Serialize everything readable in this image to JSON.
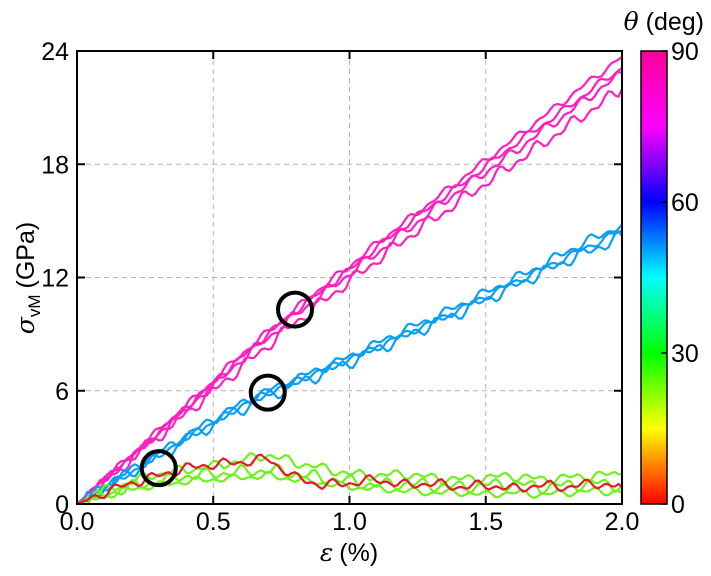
{
  "chart_data": {
    "type": "line",
    "xlabel": {
      "symbol": "ε",
      "unit": "(%)"
    },
    "ylabel": {
      "symbol": "σ",
      "subscript": "vM",
      "unit": "(GPa)"
    },
    "xlim": [
      0,
      2
    ],
    "ylim": [
      0,
      24
    ],
    "x_ticks": [
      "0.0",
      "0.5",
      "1.0",
      "1.5",
      "2.0"
    ],
    "y_ticks": [
      "0",
      "6",
      "12",
      "18",
      "24"
    ],
    "grid": true,
    "colorbar": {
      "title_symbol": "θ",
      "title_unit": "(deg)",
      "range": [
        0,
        90
      ],
      "ticks": [
        "0",
        "30",
        "60",
        "90"
      ],
      "colormap": "hsv"
    },
    "series": [
      {
        "theta": 90,
        "color": "#ff1fc0",
        "x": [
          0,
          0.1,
          0.2,
          0.3,
          0.4,
          0.5,
          0.6,
          0.7,
          0.8,
          0.9,
          1.0,
          1.1,
          1.2,
          1.3,
          1.4,
          1.5,
          1.6,
          1.7,
          1.8,
          1.9,
          2.0
        ],
        "y": [
          0,
          1.3,
          2.6,
          3.9,
          5.2,
          6.5,
          7.9,
          9.1,
          10.3,
          11.5,
          12.6,
          13.8,
          14.9,
          16.0,
          17.1,
          18.2,
          19.3,
          20.4,
          21.5,
          22.6,
          23.7
        ]
      },
      {
        "theta": 90,
        "color": "#ff1fc0",
        "x": [
          0,
          0.1,
          0.2,
          0.3,
          0.4,
          0.5,
          0.6,
          0.7,
          0.8,
          0.9,
          1.0,
          1.1,
          1.2,
          1.3,
          1.4,
          1.5,
          1.6,
          1.7,
          1.8,
          1.9,
          2.0
        ],
        "y": [
          0,
          1.2,
          2.5,
          3.7,
          5.0,
          6.3,
          7.6,
          8.8,
          10.0,
          11.1,
          12.2,
          13.3,
          14.4,
          15.5,
          16.6,
          17.6,
          18.6,
          19.7,
          20.7,
          21.8,
          22.8
        ]
      },
      {
        "theta": 90,
        "color": "#ff1fc0",
        "x": [
          0,
          0.1,
          0.2,
          0.3,
          0.4,
          0.5,
          0.6,
          0.7,
          0.8,
          0.9,
          1.0,
          1.1,
          1.2,
          1.3,
          1.4,
          1.5,
          1.6,
          1.7,
          1.8,
          1.9,
          2.0
        ],
        "y": [
          0,
          1.2,
          2.4,
          3.6,
          4.8,
          6.0,
          7.2,
          8.4,
          9.6,
          10.7,
          11.8,
          12.9,
          14.0,
          15.0,
          16.0,
          17.0,
          18.0,
          19.0,
          20.0,
          21.0,
          22.0
        ]
      },
      {
        "theta": 90,
        "color": "#ff1fc0",
        "x": [
          0,
          0.1,
          0.2,
          0.3,
          0.4,
          0.5,
          0.6,
          0.7,
          0.8,
          0.9,
          1.0,
          1.1,
          1.2,
          1.3,
          1.4,
          1.5,
          1.6,
          1.7,
          1.8,
          1.9,
          2.0
        ],
        "y": [
          0,
          1.3,
          2.5,
          3.8,
          5.1,
          6.4,
          7.7,
          9.0,
          10.2,
          11.3,
          12.4,
          13.6,
          14.7,
          15.8,
          16.8,
          17.9,
          19.0,
          20.0,
          21.0,
          22.1,
          23.1
        ]
      },
      {
        "theta": 60,
        "color": "#0a9ef5",
        "x": [
          0,
          0.1,
          0.2,
          0.3,
          0.4,
          0.5,
          0.6,
          0.7,
          0.8,
          0.9,
          1.0,
          1.1,
          1.2,
          1.3,
          1.4,
          1.5,
          1.6,
          1.7,
          1.8,
          1.9,
          2.0
        ],
        "y": [
          0,
          0.9,
          1.8,
          2.7,
          3.6,
          4.5,
          5.3,
          6.0,
          6.6,
          7.2,
          7.8,
          8.5,
          9.2,
          9.8,
          10.5,
          11.2,
          11.9,
          12.6,
          13.4,
          14.1,
          14.8
        ]
      },
      {
        "theta": 60,
        "color": "#0a9ef5",
        "x": [
          0,
          0.1,
          0.2,
          0.3,
          0.4,
          0.5,
          0.6,
          0.7,
          0.8,
          0.9,
          1.0,
          1.1,
          1.2,
          1.3,
          1.4,
          1.5,
          1.6,
          1.7,
          1.8,
          1.9,
          2.0
        ],
        "y": [
          0,
          0.8,
          1.7,
          2.5,
          3.4,
          4.2,
          5.0,
          5.7,
          6.3,
          6.9,
          7.5,
          8.2,
          8.8,
          9.5,
          10.1,
          10.8,
          11.5,
          12.2,
          12.9,
          13.5,
          14.2
        ]
      },
      {
        "theta": 60,
        "color": "#0a9ef5",
        "x": [
          0,
          0.1,
          0.2,
          0.3,
          0.4,
          0.5,
          0.6,
          0.7,
          0.8,
          0.9,
          1.0,
          1.1,
          1.2,
          1.3,
          1.4,
          1.5,
          1.6,
          1.7,
          1.8,
          1.9,
          2.0
        ],
        "y": [
          0,
          0.9,
          1.7,
          2.6,
          3.5,
          4.3,
          5.2,
          5.9,
          6.5,
          7.1,
          7.7,
          8.3,
          9.0,
          9.6,
          10.3,
          11.0,
          11.7,
          12.4,
          13.1,
          13.8,
          14.5
        ]
      },
      {
        "theta": 30,
        "color": "#6ef21a",
        "x": [
          0,
          0.1,
          0.2,
          0.3,
          0.4,
          0.5,
          0.6,
          0.7,
          0.8,
          0.9,
          1.0,
          1.1,
          1.2,
          1.3,
          1.4,
          1.5,
          1.6,
          1.7,
          1.8,
          1.9,
          2.0
        ],
        "y": [
          0,
          0.7,
          1.2,
          1.6,
          1.8,
          2.0,
          2.3,
          2.6,
          2.2,
          1.9,
          1.6,
          1.5,
          1.6,
          1.4,
          1.3,
          1.4,
          1.5,
          1.3,
          1.4,
          1.5,
          1.6
        ]
      },
      {
        "theta": 30,
        "color": "#6ef21a",
        "x": [
          0,
          0.1,
          0.2,
          0.3,
          0.4,
          0.5,
          0.6,
          0.7,
          0.8,
          0.9,
          1.0,
          1.1,
          1.2,
          1.3,
          1.4,
          1.5,
          1.6,
          1.7,
          1.8,
          1.9,
          2.0
        ],
        "y": [
          0,
          0.5,
          0.9,
          1.2,
          1.5,
          1.6,
          1.7,
          1.8,
          1.6,
          1.4,
          1.2,
          1.0,
          1.1,
          1.0,
          0.9,
          1.0,
          1.1,
          0.9,
          1.0,
          1.1,
          1.0
        ]
      },
      {
        "theta": 30,
        "color": "#6ef21a",
        "x": [
          0,
          0.1,
          0.2,
          0.3,
          0.4,
          0.5,
          0.6,
          0.7,
          0.8,
          0.9,
          1.0,
          1.1,
          1.2,
          1.3,
          1.4,
          1.5,
          1.6,
          1.7,
          1.8,
          1.9,
          2.0
        ],
        "y": [
          0,
          0.4,
          0.8,
          1.0,
          1.2,
          1.3,
          1.4,
          1.5,
          1.3,
          1.1,
          0.9,
          0.8,
          0.7,
          0.6,
          0.6,
          0.5,
          0.6,
          0.5,
          0.6,
          0.7,
          0.6
        ]
      },
      {
        "theta": 0,
        "color": "#e8182a",
        "x": [
          0,
          0.1,
          0.2,
          0.3,
          0.4,
          0.5,
          0.6,
          0.7,
          0.8,
          0.9,
          1.0,
          1.1,
          1.2,
          1.3,
          1.4,
          1.5,
          1.6,
          1.7,
          1.8,
          1.9,
          2.0
        ],
        "y": [
          0,
          0.6,
          1.1,
          1.5,
          1.9,
          2.1,
          2.2,
          2.4,
          1.4,
          1.0,
          1.1,
          1.3,
          1.0,
          1.1,
          0.9,
          1.0,
          0.8,
          1.0,
          0.9,
          1.1,
          0.9
        ]
      }
    ],
    "annotations": [
      {
        "type": "circle",
        "x": 0.3,
        "y": 1.9
      },
      {
        "type": "circle",
        "x": 0.7,
        "y": 5.9
      },
      {
        "type": "circle",
        "x": 0.8,
        "y": 10.3
      }
    ]
  }
}
